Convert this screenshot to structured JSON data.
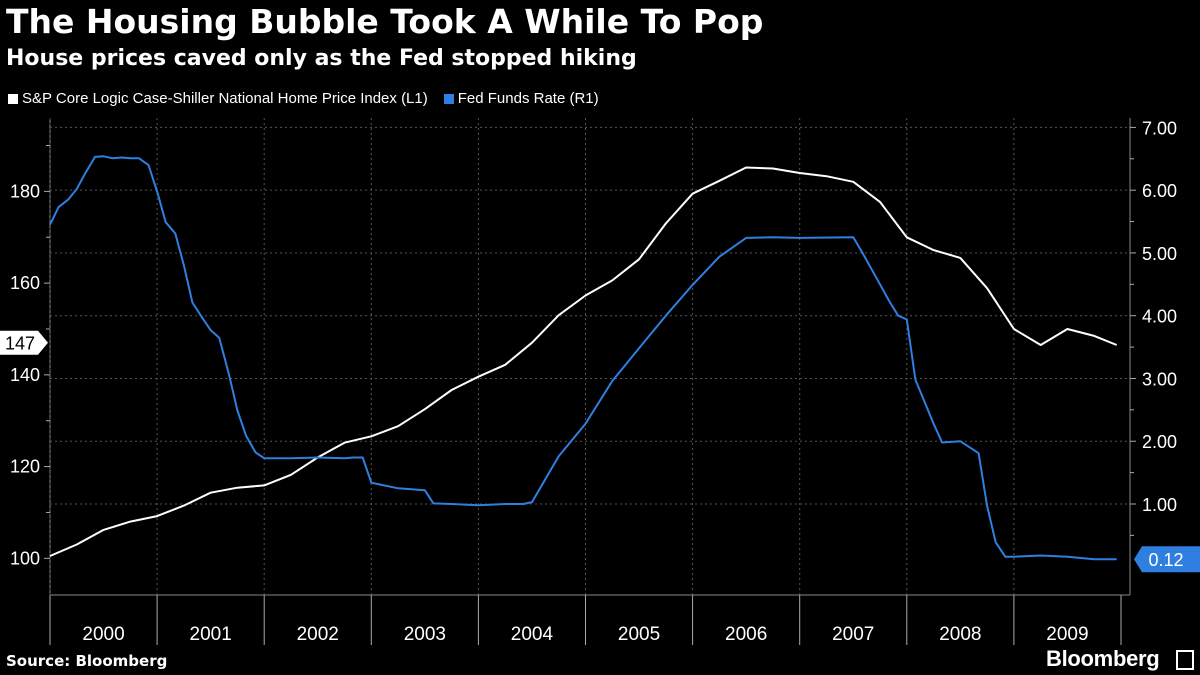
{
  "title": "The Housing Bubble Took A While To Pop",
  "subtitle": "House prices caved only as the Fed stopped hiking",
  "source": "Source: Bloomberg",
  "brand": "Bloomberg",
  "colors": {
    "background": "#000000",
    "home_price": "#ffffff",
    "fed_funds": "#2f7fe0",
    "grid": "#555555"
  },
  "chart_data": {
    "type": "line",
    "title": "The Housing Bubble Took A While To Pop",
    "subtitle": "House prices caved only as the Fed stopped hiking",
    "x_tick_labels": [
      "2000",
      "2001",
      "2002",
      "2003",
      "2004",
      "2005",
      "2006",
      "2007",
      "2008",
      "2009"
    ],
    "y_left": {
      "label": "L1",
      "ticks": [
        "100",
        "120",
        "140",
        "160",
        "180"
      ],
      "range": [
        92,
        196
      ]
    },
    "y_right": {
      "label": "R1",
      "ticks": [
        "1.00",
        "2.00",
        "3.00",
        "4.00",
        "5.00",
        "6.00",
        "7.00"
      ],
      "range": [
        -0.45,
        7.15
      ]
    },
    "last_value_tags": {
      "home_price": "147",
      "fed_funds": "0.12"
    },
    "series": [
      {
        "name": "S&P Core Logic Case-Shiller National Home Price Index (L1)",
        "axis": "left",
        "x": [
          2000.0,
          2000.25,
          2000.5,
          2000.75,
          2001.0,
          2001.25,
          2001.5,
          2001.75,
          2002.0,
          2002.25,
          2002.5,
          2002.75,
          2003.0,
          2003.25,
          2003.5,
          2003.75,
          2004.0,
          2004.25,
          2004.5,
          2004.75,
          2005.0,
          2005.25,
          2005.5,
          2005.75,
          2006.0,
          2006.25,
          2006.5,
          2006.75,
          2007.0,
          2007.25,
          2007.5,
          2007.75,
          2008.0,
          2008.25,
          2008.5,
          2008.75,
          2009.0,
          2009.25,
          2009.5,
          2009.75,
          2009.96
        ],
        "values": [
          100.5,
          103.0,
          106.2,
          108.0,
          109.2,
          111.5,
          114.3,
          115.4,
          115.9,
          118.2,
          122.0,
          125.2,
          126.6,
          128.8,
          132.5,
          136.7,
          139.6,
          142.2,
          147.0,
          153.0,
          157.3,
          160.6,
          165.2,
          173.0,
          179.5,
          182.3,
          185.2,
          185.0,
          184.0,
          183.3,
          182.1,
          177.7,
          170.0,
          167.2,
          165.5,
          158.9,
          150.0,
          146.5,
          150.0,
          148.5,
          146.5
        ]
      },
      {
        "name": "Fed Funds Rate (R1)",
        "axis": "right",
        "x": [
          2000.0,
          2000.08,
          2000.17,
          2000.25,
          2000.33,
          2000.42,
          2000.5,
          2000.58,
          2000.67,
          2000.75,
          2000.83,
          2000.92,
          2001.0,
          2001.08,
          2001.17,
          2001.25,
          2001.33,
          2001.42,
          2001.5,
          2001.58,
          2001.67,
          2001.75,
          2001.83,
          2001.92,
          2002.0,
          2002.25,
          2002.5,
          2002.75,
          2002.83,
          2002.92,
          2003.0,
          2003.25,
          2003.5,
          2003.58,
          2003.75,
          2004.0,
          2004.25,
          2004.42,
          2004.5,
          2004.75,
          2005.0,
          2005.25,
          2005.5,
          2005.75,
          2006.0,
          2006.25,
          2006.5,
          2006.75,
          2007.0,
          2007.5,
          2007.58,
          2007.75,
          2007.83,
          2007.92,
          2008.0,
          2008.08,
          2008.17,
          2008.25,
          2008.33,
          2008.5,
          2008.67,
          2008.75,
          2008.83,
          2008.92,
          2009.0,
          2009.25,
          2009.5,
          2009.75,
          2009.96
        ],
        "values": [
          5.45,
          5.73,
          5.85,
          6.02,
          6.27,
          6.53,
          6.54,
          6.51,
          6.52,
          6.51,
          6.51,
          6.4,
          5.98,
          5.49,
          5.31,
          4.8,
          4.21,
          3.97,
          3.77,
          3.65,
          3.07,
          2.49,
          2.09,
          1.82,
          1.73,
          1.73,
          1.74,
          1.73,
          1.74,
          1.74,
          1.34,
          1.25,
          1.22,
          1.01,
          1.0,
          0.98,
          1.0,
          1.0,
          1.03,
          1.76,
          2.28,
          2.96,
          3.48,
          4.0,
          4.49,
          4.94,
          5.24,
          5.25,
          5.24,
          5.25,
          5.02,
          4.5,
          4.25,
          4.0,
          3.94,
          2.98,
          2.61,
          2.28,
          1.98,
          2.0,
          1.81,
          0.97,
          0.39,
          0.16,
          0.16,
          0.18,
          0.16,
          0.12,
          0.12
        ]
      }
    ]
  },
  "legend": {
    "items": [
      {
        "label": "S&P Core Logic Case-Shiller National Home Price Index (L1)",
        "color": "#ffffff"
      },
      {
        "label": "Fed Funds Rate (R1)",
        "color": "#2f7fe0"
      }
    ]
  }
}
